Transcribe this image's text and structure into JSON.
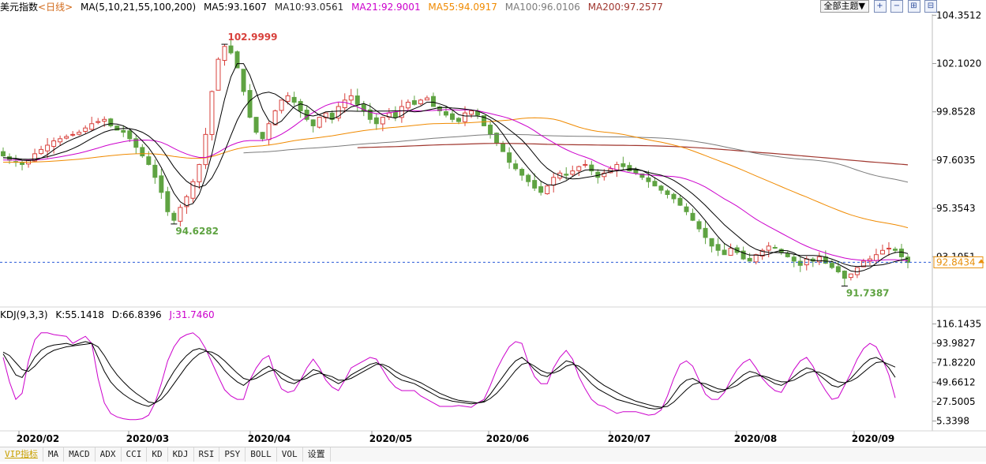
{
  "colors": {
    "up": "#d8413c",
    "down": "#5fa342",
    "ma5": "#000000",
    "ma10": "#000000",
    "ma21": "#cc00cc",
    "ma55": "#f08a00",
    "ma100": "#7b7b7b",
    "ma200": "#a0362e",
    "k": "#000000",
    "d": "#000000",
    "j": "#cc00cc",
    "grid": "#e6e6e6",
    "current": "#2a5bd7",
    "high_label": "#d8413c",
    "low_label": "#5fa342",
    "price_box": "#e8900c"
  },
  "legend": {
    "instrument": "美元指数",
    "period": "<日线>",
    "ma_title": "MA(5,10,21,55,100,200)",
    "ma5": "MA5:93.1607",
    "ma10": "MA10:93.0561",
    "ma21": "MA21:92.9001",
    "ma55": "MA55:94.0917",
    "ma100": "MA100:96.0106",
    "ma200": "MA200:97.2577"
  },
  "kdj_legend": {
    "title": "KDJ(9,3,3)",
    "k": "K:55.1418",
    "d": "D:66.8396",
    "j": "J:31.7460"
  },
  "top_controls": {
    "theme": "全部主题▼",
    "icons": [
      "plus-box-icon",
      "minus-box-icon",
      "chart-plus-icon",
      "chart-minus-icon"
    ],
    "icon_glyphs": [
      "+",
      "−",
      "⊞",
      "⊟"
    ]
  },
  "toolbar": {
    "tabs": [
      "VIP指标",
      "MA",
      "MACD",
      "ADX",
      "CCI",
      "KD",
      "KDJ",
      "RSI",
      "PSY",
      "BOLL",
      "VOL",
      "设置"
    ]
  },
  "chart_data": [
    {
      "type": "candlestick",
      "title": "美元指数 <日线>",
      "yticks": [
        104.3512,
        102.102,
        99.8528,
        97.6035,
        95.3543,
        93.1051
      ],
      "ylim": [
        90.8,
        104.4
      ],
      "xticks": [
        "2020/02",
        "2020/03",
        "2020/04",
        "2020/05",
        "2020/06",
        "2020/07",
        "2020/08",
        "2020/09"
      ],
      "current_price": 92.8434,
      "annotations": [
        {
          "label": "102.9999",
          "value": 102.9999,
          "kind": "high"
        },
        {
          "label": "94.6282",
          "value": 94.6282,
          "kind": "low"
        },
        {
          "label": "91.7387",
          "value": 91.7387,
          "kind": "low"
        }
      ],
      "close": [
        97.8,
        97.6,
        97.5,
        97.4,
        97.6,
        97.9,
        98.1,
        98.3,
        98.5,
        98.6,
        98.7,
        98.8,
        98.9,
        99.1,
        99.3,
        99.4,
        99.5,
        99.2,
        99.0,
        98.9,
        98.6,
        98.2,
        97.8,
        97.4,
        96.8,
        96.1,
        95.2,
        94.8,
        95.4,
        95.9,
        96.6,
        97.4,
        98.8,
        100.8,
        102.3,
        102.9,
        102.6,
        101.9,
        100.8,
        99.6,
        98.9,
        98.6,
        99.3,
        99.9,
        100.4,
        100.6,
        100.3,
        99.9,
        99.5,
        99.2,
        99.6,
        99.8,
        99.5,
        100.1,
        100.4,
        100.6,
        100.2,
        99.9,
        99.5,
        99.3,
        99.6,
        99.8,
        99.6,
        100.1,
        100.3,
        100.2,
        100.4,
        100.5,
        100.1,
        99.9,
        99.7,
        99.5,
        99.4,
        99.8,
        99.9,
        99.7,
        99.2,
        98.8,
        98.4,
        98.0,
        97.5,
        97.2,
        96.9,
        96.6,
        96.3,
        96.1,
        96.4,
        96.8,
        97.0,
        96.9,
        97.1,
        97.3,
        97.4,
        97.1,
        96.8,
        97.0,
        97.2,
        97.4,
        97.3,
        97.1,
        97.0,
        96.8,
        96.6,
        96.4,
        96.2,
        96.0,
        95.8,
        95.5,
        95.2,
        94.8,
        94.4,
        94.0,
        93.6,
        93.4,
        93.2,
        93.5,
        93.3,
        93.0,
        92.9,
        93.2,
        93.4,
        93.6,
        93.5,
        93.3,
        93.1,
        92.9,
        92.7,
        93.0,
        92.9,
        93.1,
        92.8,
        92.6,
        92.4,
        92.1,
        92.3,
        92.6,
        92.9,
        93.0,
        93.2,
        93.4,
        93.5,
        93.4,
        93.1,
        92.84
      ],
      "kdj": {
        "yticks": [
          116.1435,
          93.9827,
          71.822,
          49.6612,
          27.5005,
          5.3398
        ],
        "ylim": [
          -5,
          122
        ],
        "K": [
          82,
          70,
          58,
          55,
          66,
          78,
          86,
          90,
          92,
          93,
          94,
          92,
          94,
          96,
          94,
          78,
          62,
          50,
          42,
          36,
          31,
          27,
          24,
          22,
          26,
          36,
          50,
          62,
          72,
          80,
          86,
          88,
          86,
          80,
          72,
          63,
          56,
          50,
          46,
          52,
          58,
          64,
          68,
          62,
          54,
          50,
          48,
          52,
          58,
          64,
          62,
          56,
          52,
          48,
          52,
          58,
          62,
          66,
          70,
          72,
          68,
          62,
          56,
          52,
          50,
          48,
          44,
          40,
          36,
          32,
          30,
          28,
          27,
          26,
          25,
          26,
          28,
          36,
          46,
          56,
          66,
          74,
          78,
          72,
          64,
          58,
          56,
          62,
          68,
          74,
          72,
          64,
          56,
          48,
          42,
          38,
          34,
          30,
          28,
          26,
          24,
          22,
          20,
          19,
          20,
          26,
          36,
          46,
          52,
          54,
          50,
          44,
          40,
          38,
          40,
          46,
          52,
          58,
          62,
          60,
          56,
          52,
          48,
          46,
          50,
          56,
          62,
          66,
          64,
          58,
          52,
          46,
          44,
          48,
          54,
          62,
          70,
          76,
          78,
          74,
          66,
          55.14
        ],
        "D": [
          84,
          80,
          72,
          64,
          62,
          68,
          76,
          82,
          86,
          88,
          90,
          91,
          92,
          93,
          94,
          90,
          80,
          68,
          58,
          50,
          43,
          37,
          32,
          27,
          26,
          30,
          38,
          48,
          58,
          68,
          76,
          82,
          85,
          84,
          80,
          74,
          67,
          60,
          54,
          52,
          54,
          58,
          62,
          64,
          60,
          56,
          52,
          52,
          54,
          58,
          60,
          58,
          56,
          52,
          52,
          54,
          58,
          62,
          66,
          70,
          70,
          67,
          62,
          58,
          55,
          52,
          49,
          45,
          41,
          37,
          34,
          31,
          29,
          28,
          27,
          26,
          27,
          31,
          37,
          45,
          54,
          63,
          70,
          72,
          68,
          63,
          60,
          60,
          63,
          68,
          70,
          68,
          63,
          57,
          51,
          46,
          42,
          38,
          34,
          31,
          28,
          26,
          24,
          22,
          21,
          22,
          27,
          34,
          41,
          47,
          49,
          48,
          45,
          42,
          41,
          43,
          46,
          51,
          55,
          57,
          57,
          55,
          52,
          50,
          50,
          52,
          56,
          60,
          62,
          61,
          58,
          54,
          50,
          49,
          51,
          55,
          61,
          67,
          72,
          73,
          70,
          66.84
        ]
      }
    }
  ]
}
